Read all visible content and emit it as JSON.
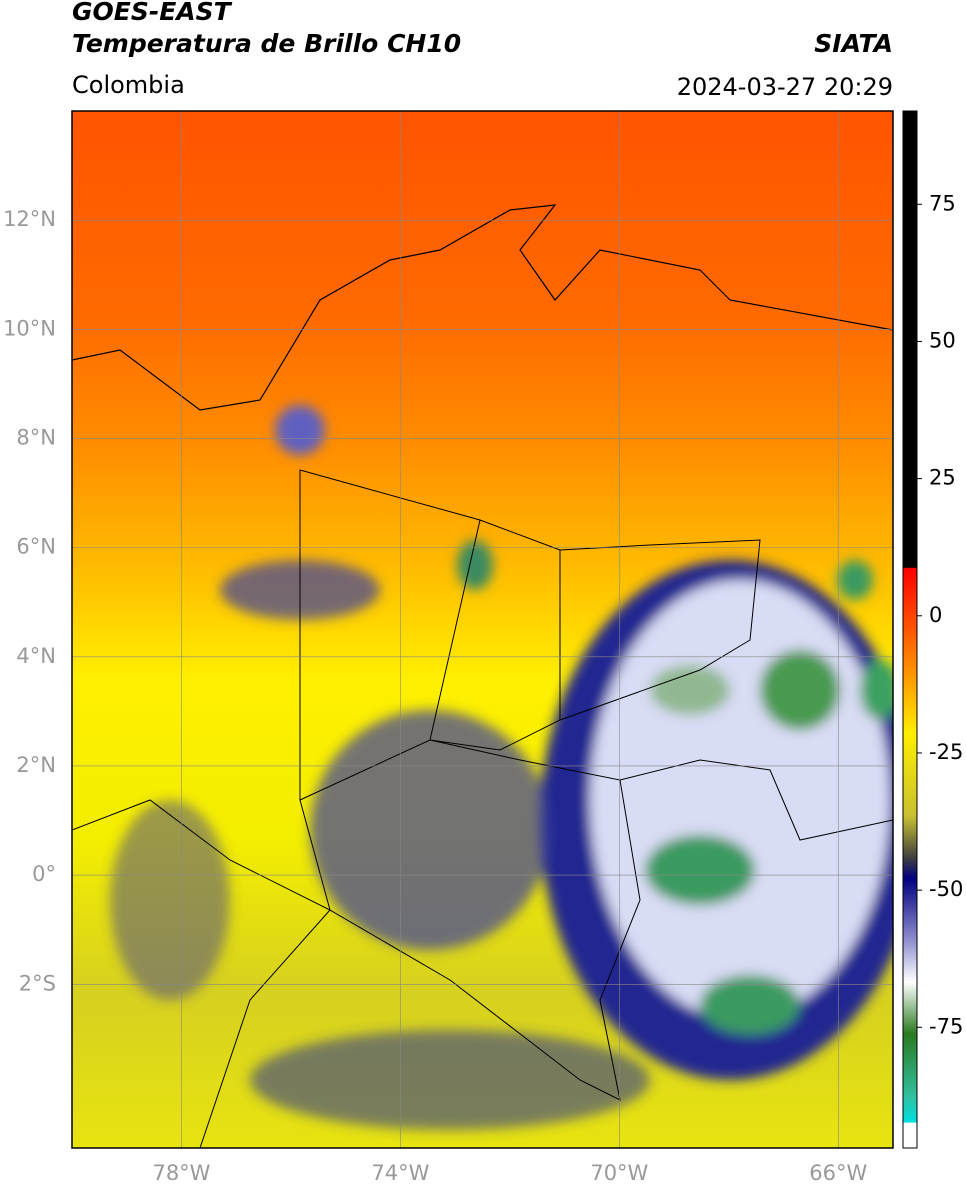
{
  "header": {
    "title": "GOES-EAST",
    "subtitle": "Temperatura de Brillo CH10",
    "source": "SIATA",
    "region": "Colombia",
    "datetime": "2024-03-27 20:29"
  },
  "map": {
    "lonlim": [
      -80,
      -65
    ],
    "latlim": [
      -5,
      14
    ],
    "lonticks": [
      {
        "value": -78,
        "label": "78°W"
      },
      {
        "value": -74,
        "label": "74°W"
      },
      {
        "value": -70,
        "label": "70°W"
      },
      {
        "value": -66,
        "label": "66°W"
      }
    ],
    "latticks": [
      {
        "value": 12,
        "label": "12°N"
      },
      {
        "value": 10,
        "label": "10°N"
      },
      {
        "value": 8,
        "label": "8°N"
      },
      {
        "value": 6,
        "label": "6°N"
      },
      {
        "value": 4,
        "label": "4°N"
      },
      {
        "value": 2,
        "label": "2°N"
      },
      {
        "value": 0,
        "label": "0°"
      },
      {
        "value": -2,
        "label": "2°S"
      }
    ]
  },
  "colorbar": {
    "lim": [
      -97,
      92
    ],
    "ticks": [
      75,
      50,
      25,
      0,
      -25,
      -50,
      -75
    ]
  }
}
